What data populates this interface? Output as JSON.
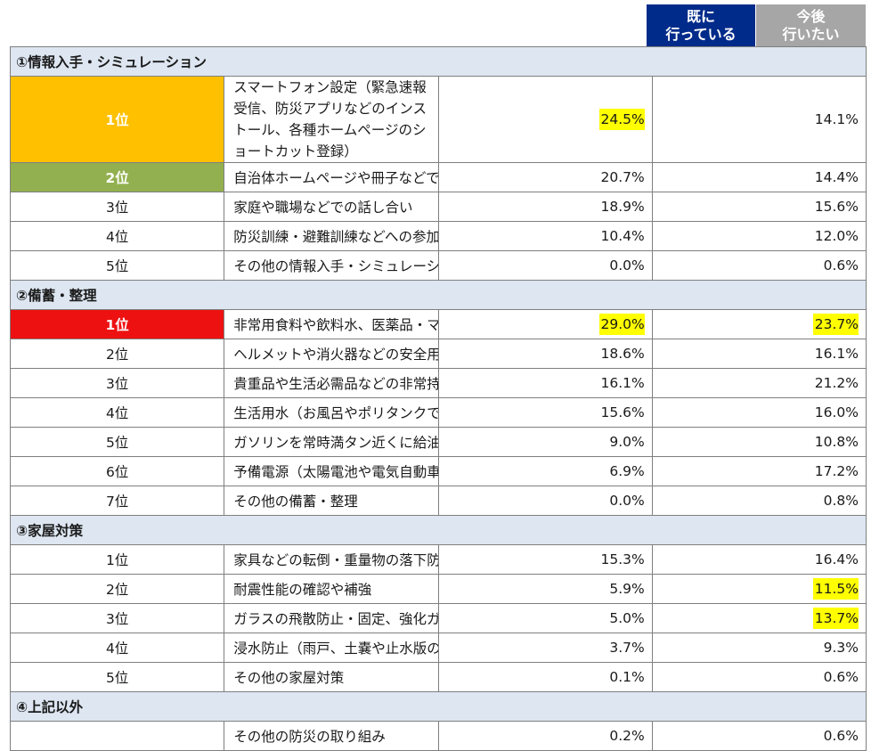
{
  "header": {
    "done": [
      "既に",
      "行っている"
    ],
    "future": [
      "今後",
      "行いたい"
    ]
  },
  "sections": [
    {
      "title": "①情報入手・シミュレーション",
      "rows": [
        {
          "rank": "1位",
          "item": "スマートフォン設定（緊急速報受信、防災アプリなどのインストール、各種ホームページのショートカット登録）",
          "done": "24.5%",
          "future": "14.1%",
          "badge": "gold",
          "hl_done": true,
          "hl_future": false,
          "tall": true
        },
        {
          "rank": "2位",
          "item": "自治体ホームページや冊子などでの防災情報や被害想定の確認",
          "done": "20.7%",
          "future": "14.4%",
          "badge": "green",
          "hl_done": false,
          "hl_future": false
        },
        {
          "rank": "3位",
          "item": "家庭や職場などでの話し合い",
          "done": "18.9%",
          "future": "15.6%"
        },
        {
          "rank": "4位",
          "item": "防災訓練・避難訓練などへの参加",
          "done": "10.4%",
          "future": "12.0%"
        },
        {
          "rank": "5位",
          "item": "その他の情報入手・シミュレーション",
          "done": "0.0%",
          "future": "0.6%"
        }
      ]
    },
    {
      "title": "②備蓄・整理",
      "rows": [
        {
          "rank": "1位",
          "item": "非常用食料や飲料水、医薬品・マスク・日用品など",
          "done": "29.0%",
          "future": "23.7%",
          "badge": "red",
          "hl_done": true,
          "hl_future": true
        },
        {
          "rank": "2位",
          "item": "ヘルメットや消火器などの安全用具、懐中電灯・ラジオなどの災害対策グッズ",
          "done": "18.6%",
          "future": "16.1%"
        },
        {
          "rank": "3位",
          "item": "貴重品や生活必需品などの非常持ち出し品",
          "done": "16.1%",
          "future": "21.2%"
        },
        {
          "rank": "4位",
          "item": "生活用水（お風呂やポリタンクでの貯水）",
          "done": "15.6%",
          "future": "16.0%"
        },
        {
          "rank": "5位",
          "item": "ガソリンを常時満タン近くに給油",
          "done": "9.0%",
          "future": "10.8%"
        },
        {
          "rank": "6位",
          "item": "予備電源（太陽電池や電気自動車のバッテリー）",
          "done": "6.9%",
          "future": "17.2%"
        },
        {
          "rank": "7位",
          "item": "その他の備蓄・整理",
          "done": "0.0%",
          "future": "0.8%"
        }
      ]
    },
    {
      "title": "③家屋対策",
      "rows": [
        {
          "rank": "1位",
          "item": "家具などの転倒・重量物の落下防止",
          "done": "15.3%",
          "future": "16.4%"
        },
        {
          "rank": "2位",
          "item": "耐震性能の確認や補強",
          "done": "5.9%",
          "future": "11.5%",
          "hl_future": true
        },
        {
          "rank": "3位",
          "item": "ガラスの飛散防止・固定、強化ガラスの取り付け",
          "done": "5.0%",
          "future": "13.7%",
          "hl_future": true
        },
        {
          "rank": "4位",
          "item": "浸水防止（雨戸、土嚢や止水版の準備、排水溝の掃除）",
          "done": "3.7%",
          "future": "9.3%"
        },
        {
          "rank": "5位",
          "item": "その他の家屋対策",
          "done": "0.1%",
          "future": "0.6%"
        }
      ]
    },
    {
      "title": "④上記以外",
      "rows": [
        {
          "rank": "",
          "item": "その他の防災の取り組み",
          "done": "0.2%",
          "future": "0.6%"
        }
      ]
    }
  ],
  "colors": {
    "header_done": "#002b8a",
    "header_future": "#a6a6a6",
    "section_bg": "#dde6f1",
    "highlight": "#ffff00",
    "gold": "#ffc000",
    "green": "#92b04f",
    "red": "#ee1111"
  }
}
